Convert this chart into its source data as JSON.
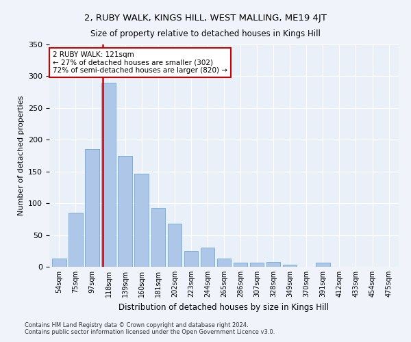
{
  "title": "2, RUBY WALK, KINGS HILL, WEST MALLING, ME19 4JT",
  "subtitle": "Size of property relative to detached houses in Kings Hill",
  "xlabel": "Distribution of detached houses by size in Kings Hill",
  "ylabel": "Number of detached properties",
  "categories": [
    "54sqm",
    "75sqm",
    "97sqm",
    "118sqm",
    "139sqm",
    "160sqm",
    "181sqm",
    "202sqm",
    "223sqm",
    "244sqm",
    "265sqm",
    "286sqm",
    "307sqm",
    "328sqm",
    "349sqm",
    "370sqm",
    "391sqm",
    "412sqm",
    "433sqm",
    "454sqm",
    "475sqm"
  ],
  "values": [
    13,
    85,
    185,
    290,
    175,
    147,
    93,
    68,
    25,
    30,
    13,
    6,
    7,
    8,
    3,
    0,
    6,
    0,
    0,
    0,
    0
  ],
  "bar_color": "#aec6e8",
  "bar_edge_color": "#5a9fd4",
  "red_line_x": 3,
  "annotation_line1": "2 RUBY WALK: 121sqm",
  "annotation_line2": "← 27% of detached houses are smaller (302)",
  "annotation_line3": "72% of semi-detached houses are larger (820) →",
  "annotation_box_color": "#ffffff",
  "annotation_box_edge": "#cc0000",
  "red_line_color": "#cc0000",
  "ylim": [
    0,
    350
  ],
  "yticks": [
    0,
    50,
    100,
    150,
    200,
    250,
    300,
    350
  ],
  "footnote1": "Contains HM Land Registry data © Crown copyright and database right 2024.",
  "footnote2": "Contains public sector information licensed under the Open Government Licence v3.0.",
  "background_color": "#f0f4fa",
  "plot_bg_color": "#eaf0f8"
}
